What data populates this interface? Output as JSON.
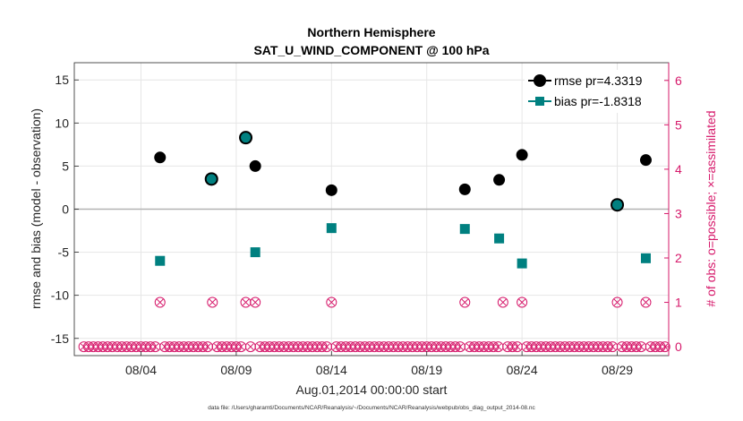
{
  "chart_data": {
    "type": "scatter",
    "title": "Northern Hemisphere",
    "subtitle": "SAT_U_WIND_COMPONENT @ 100 hPa",
    "xlabel": "Aug.01,2014 00:00:00 start",
    "ylabel": "rmse and bias (model - observation)",
    "ylabel_right": "# of obs: o=possible; ×=assimilated",
    "footer": "data file: /Users/gharamti/Documents/NCAR/Reanalysis/~/Documents/NCAR/Reanalysis/webpub/obs_diag_output_2014-08.nc",
    "xlim": [
      0.5,
      31.7
    ],
    "ylim": [
      -17,
      17
    ],
    "ylim_right": [
      -0.2,
      6.4
    ],
    "x_ticks": [
      4,
      9,
      14,
      19,
      24,
      29
    ],
    "x_tick_labels": [
      "08/04",
      "08/09",
      "08/14",
      "08/19",
      "08/24",
      "08/29"
    ],
    "y_ticks": [
      -15,
      -10,
      -5,
      0,
      5,
      10,
      15
    ],
    "y_tick_labels": [
      "-15",
      "-10",
      "-5",
      "0",
      "5",
      "10",
      "15"
    ],
    "y_ticks_right": [
      0,
      1,
      2,
      3,
      4,
      5,
      6
    ],
    "y_tick_labels_right": [
      "0",
      "1",
      "2",
      "3",
      "4",
      "5",
      "6"
    ],
    "zero_line": 0,
    "grid": true,
    "legend_position": "top-right",
    "colors": {
      "rmse": "#000000",
      "bias": "#008080",
      "obs": "#d6186a",
      "zero": "#b3b3b3"
    },
    "series": [
      {
        "name": "rmse pr=4.3319",
        "x": [
          5,
          7.7,
          9.5,
          10,
          14,
          21,
          22.8,
          24,
          29,
          30.5
        ],
        "values": [
          6.0,
          3.5,
          8.3,
          5.0,
          2.2,
          2.3,
          3.4,
          6.3,
          0.5,
          5.7
        ]
      },
      {
        "name": "bias pr=-1.8318",
        "x": [
          5,
          7.7,
          9.5,
          10,
          14,
          21,
          22.8,
          24,
          29,
          30.5
        ],
        "values": [
          -6.0,
          3.5,
          8.3,
          -5.0,
          -2.2,
          -2.3,
          -3.4,
          -6.3,
          0.5,
          -5.7
        ]
      }
    ],
    "obs_counts": {
      "x": [
        1,
        1.25,
        1.5,
        1.75,
        2,
        2.25,
        2.5,
        2.75,
        3,
        3.25,
        3.5,
        3.75,
        4,
        4.25,
        4.5,
        4.75,
        5,
        5.25,
        5.5,
        5.75,
        6,
        6.25,
        6.5,
        6.75,
        7,
        7.25,
        7.5,
        7.75,
        8,
        8.25,
        8.5,
        8.75,
        9,
        9.25,
        9.5,
        9.75,
        10,
        10.25,
        10.5,
        10.75,
        11,
        11.25,
        11.5,
        11.75,
        12,
        12.25,
        12.5,
        12.75,
        13,
        13.25,
        13.5,
        13.75,
        14,
        14.25,
        14.5,
        14.75,
        15,
        15.25,
        15.5,
        15.75,
        16,
        16.25,
        16.5,
        16.75,
        17,
        17.25,
        17.5,
        17.75,
        18,
        18.25,
        18.5,
        18.75,
        19,
        19.25,
        19.5,
        19.75,
        20,
        20.25,
        20.5,
        20.75,
        21,
        21.25,
        21.5,
        21.75,
        22,
        22.25,
        22.5,
        22.75,
        23,
        23.25,
        23.5,
        23.75,
        24,
        24.25,
        24.5,
        24.75,
        25,
        25.25,
        25.5,
        25.75,
        26,
        26.25,
        26.5,
        26.75,
        27,
        27.25,
        27.5,
        27.75,
        28,
        28.25,
        28.5,
        28.75,
        29,
        29.25,
        29.5,
        29.75,
        30,
        30.25,
        30.5,
        30.75,
        31,
        31.25,
        31.5
      ],
      "possible": [
        0,
        0,
        0,
        0,
        0,
        0,
        0,
        0,
        0,
        0,
        0,
        0,
        0,
        0,
        0,
        0,
        1,
        0,
        0,
        0,
        0,
        0,
        0,
        0,
        0,
        0,
        0,
        1,
        0,
        0,
        0,
        0,
        0,
        0,
        1,
        0,
        1,
        0,
        0,
        0,
        0,
        0,
        0,
        0,
        0,
        0,
        0,
        0,
        0,
        0,
        0,
        0,
        1,
        0,
        0,
        0,
        0,
        0,
        0,
        0,
        0,
        0,
        0,
        0,
        0,
        0,
        0,
        0,
        0,
        0,
        0,
        0,
        0,
        0,
        0,
        0,
        0,
        0,
        0,
        0,
        1,
        0,
        0,
        0,
        0,
        0,
        0,
        0,
        1,
        0,
        0,
        0,
        1,
        0,
        0,
        0,
        0,
        0,
        0,
        0,
        0,
        0,
        0,
        0,
        0,
        0,
        0,
        0,
        0,
        0,
        0,
        0,
        1,
        0,
        0,
        0,
        0,
        0,
        1,
        0,
        0,
        0,
        0,
        0,
        0
      ],
      "assimilated": [
        0,
        0,
        0,
        0,
        0,
        0,
        0,
        0,
        0,
        0,
        0,
        0,
        0,
        0,
        0,
        0,
        1,
        0,
        0,
        0,
        0,
        0,
        0,
        0,
        0,
        0,
        0,
        1,
        0,
        0,
        0,
        0,
        0,
        0,
        1,
        0,
        1,
        0,
        0,
        0,
        0,
        0,
        0,
        0,
        0,
        0,
        0,
        0,
        0,
        0,
        0,
        0,
        1,
        0,
        0,
        0,
        0,
        0,
        0,
        0,
        0,
        0,
        0,
        0,
        0,
        0,
        0,
        0,
        0,
        0,
        0,
        0,
        0,
        0,
        0,
        0,
        0,
        0,
        0,
        0,
        1,
        0,
        0,
        0,
        0,
        0,
        0,
        0,
        1,
        0,
        0,
        0,
        1,
        0,
        0,
        0,
        0,
        0,
        0,
        0,
        0,
        0,
        0,
        0,
        0,
        0,
        0,
        0,
        0,
        0,
        0,
        0,
        1,
        0,
        0,
        0,
        0,
        0,
        1,
        0,
        0,
        0,
        0,
        0,
        0
      ]
    }
  }
}
